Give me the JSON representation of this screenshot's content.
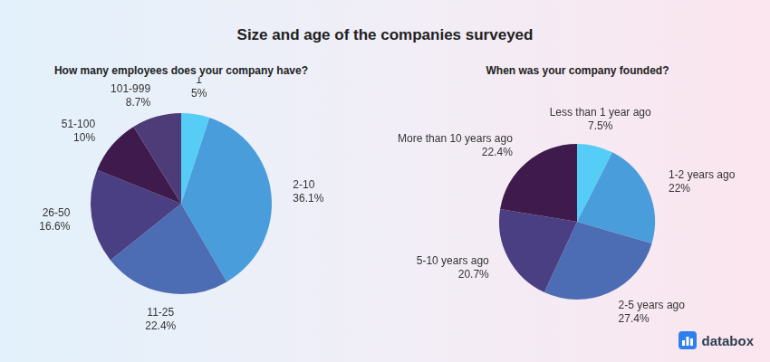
{
  "title": "Size and age of the companies surveyed",
  "logo": "databox",
  "chart_data": [
    {
      "type": "pie",
      "title": "How many employees does your company have?",
      "categories": [
        "1",
        "2-10",
        "11-25",
        "26-50",
        "51-100",
        "101-999"
      ],
      "values": [
        5,
        36.1,
        22.4,
        16.6,
        10,
        8.7
      ],
      "value_labels": [
        "5%",
        "36.1%",
        "22.4%",
        "16.6%",
        "10%",
        "8.7%"
      ],
      "colors": [
        "#56cdf6",
        "#4a9ddb",
        "#4c6db3",
        "#4a3f82",
        "#3f1a4c",
        "#4d3c78"
      ],
      "data_labels": true
    },
    {
      "type": "pie",
      "title": "When was your company founded?",
      "categories": [
        "Less than 1 year ago",
        "1-2 years ago",
        "2-5 years ago",
        "5-10 years ago",
        "More than 10 years ago"
      ],
      "values": [
        7.5,
        22,
        27.4,
        20.7,
        22.4
      ],
      "value_labels": [
        "7.5%",
        "22%",
        "27.4%",
        "20.7%",
        "22.4%"
      ],
      "colors": [
        "#56cdf6",
        "#4a9ddb",
        "#4c6db3",
        "#4a3f82",
        "#3f1a4c"
      ],
      "data_labels": true
    }
  ]
}
